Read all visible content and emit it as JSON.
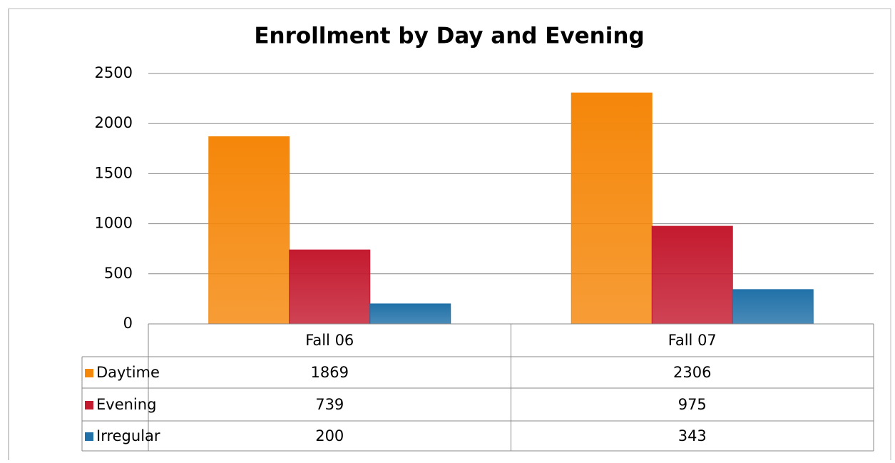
{
  "chart_data": {
    "type": "bar",
    "title": "Enrollment by Day and Evening",
    "categories": [
      "Fall 06",
      "Fall 07"
    ],
    "series": [
      {
        "name": "Daytime",
        "color": "#f5870a",
        "values": [
          1869,
          2306
        ]
      },
      {
        "name": "Evening",
        "color": "#c41a2f",
        "values": [
          739,
          975
        ]
      },
      {
        "name": "Irregular",
        "color": "#2171a8",
        "values": [
          200,
          343
        ]
      }
    ],
    "ylim": [
      0,
      2500
    ],
    "yticks": [
      0,
      500,
      1000,
      1500,
      2000,
      2500
    ],
    "grid": true,
    "data_table": true
  }
}
